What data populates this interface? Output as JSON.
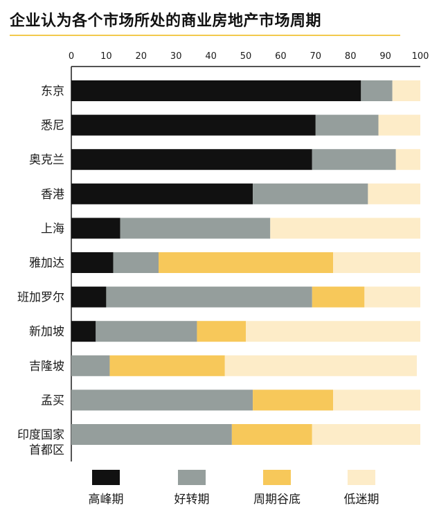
{
  "title": "企业认为各个市场所处的商业房地产市场周期",
  "chart_data": {
    "type": "bar",
    "orientation": "horizontal",
    "stacked": true,
    "title": "企业认为各个市场所处的商业房地产市场周期",
    "xlim": [
      0,
      100
    ],
    "xticks": [
      0,
      10,
      20,
      30,
      40,
      50,
      60,
      70,
      80,
      90,
      100
    ],
    "grid": false,
    "legend_position": "bottom",
    "categories": [
      [
        "东京"
      ],
      [
        "悉尼"
      ],
      [
        "奥克兰"
      ],
      [
        "香港"
      ],
      [
        "上海"
      ],
      [
        "雅加达"
      ],
      [
        "班加罗尔"
      ],
      [
        "新加坡"
      ],
      [
        "吉隆坡"
      ],
      [
        "孟买"
      ],
      [
        "印度国家",
        "首都区"
      ]
    ],
    "series": [
      {
        "name": "高峰期",
        "color": "#111111",
        "values": [
          83,
          70,
          69,
          52,
          14,
          12,
          10,
          7,
          0,
          0,
          0
        ]
      },
      {
        "name": "好转期",
        "color": "#959e9c",
        "values": [
          9,
          18,
          24,
          33,
          43,
          13,
          59,
          29,
          11,
          52,
          46
        ]
      },
      {
        "name": "周期谷底",
        "color": "#f7c85a",
        "values": [
          0,
          0,
          0,
          0,
          0,
          50,
          15,
          14,
          33,
          23,
          23
        ]
      },
      {
        "name": "低迷期",
        "color": "#fdecc8",
        "values": [
          8,
          12,
          7,
          15,
          43,
          25,
          16,
          50,
          55,
          25,
          31
        ]
      }
    ]
  }
}
